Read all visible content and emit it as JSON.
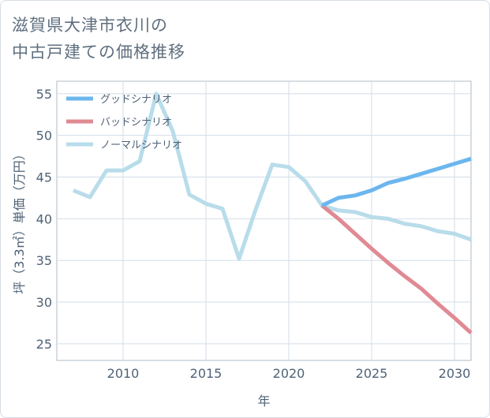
{
  "title": {
    "line1": "滋賀県大津市衣川の",
    "line2": "中古戸建ての価格推移"
  },
  "chart_data": {
    "type": "line",
    "xlabel": "年",
    "ylabel": "坪（3.3㎡）単価（万円）",
    "xlim": [
      2006,
      2031
    ],
    "ylim": [
      23,
      56.5
    ],
    "xticks": [
      2010,
      2015,
      2020,
      2025,
      2030
    ],
    "yticks": [
      25,
      30,
      35,
      40,
      45,
      50,
      55
    ],
    "grid": true,
    "legend_position": "top-left",
    "series": [
      {
        "name": "グッドシナリオ",
        "color": "#6cb6ee",
        "x": [
          2022,
          2023,
          2024,
          2025,
          2026,
          2027,
          2028,
          2029,
          2030,
          2031
        ],
        "values": [
          41.6,
          42.5,
          42.8,
          43.4,
          44.3,
          44.8,
          45.4,
          46.0,
          46.6,
          47.2
        ]
      },
      {
        "name": "バッドシナリオ",
        "color": "#e08a93",
        "x": [
          2022,
          2023,
          2024,
          2025,
          2026,
          2027,
          2028,
          2029,
          2030,
          2031
        ],
        "values": [
          41.6,
          40.0,
          38.2,
          36.4,
          34.7,
          33.1,
          31.6,
          29.8,
          28.1,
          26.3
        ]
      },
      {
        "name": "ノーマルシナリオ",
        "color": "#b8dcea",
        "x": [
          2007,
          2008,
          2009,
          2010,
          2011,
          2012,
          2013,
          2014,
          2015,
          2016,
          2017,
          2018,
          2019,
          2020,
          2021,
          2022,
          2023,
          2024,
          2025,
          2026,
          2027,
          2028,
          2029,
          2030,
          2031
        ],
        "values": [
          43.4,
          42.6,
          45.8,
          45.8,
          46.9,
          55.0,
          50.5,
          42.9,
          41.8,
          41.2,
          35.2,
          41.1,
          46.5,
          46.2,
          44.5,
          41.6,
          41.0,
          40.8,
          40.2,
          40.0,
          39.4,
          39.1,
          38.5,
          38.2,
          37.5
        ]
      }
    ]
  }
}
